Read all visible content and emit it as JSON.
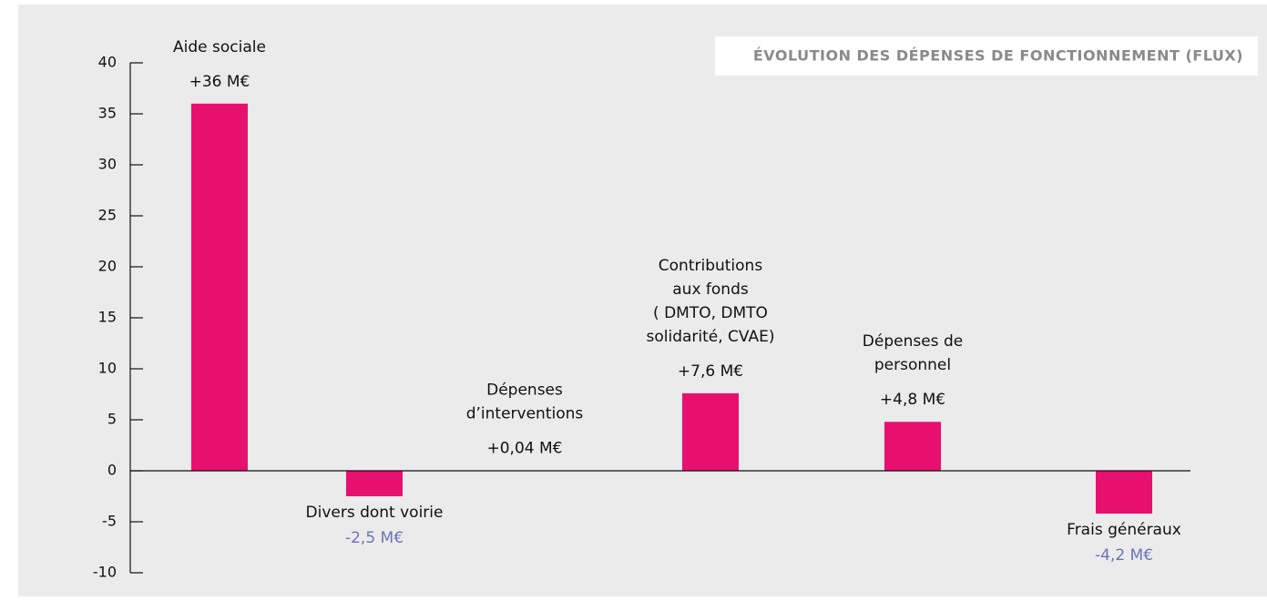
{
  "chart_data": {
    "type": "bar",
    "title": "ÉVOLUTION DES DÉPENSES DE FONCTIONNEMENT (FLUX)",
    "categories": [
      "Aide sociale",
      "Divers dont voirie",
      "Dépenses\nd’interventions",
      "Contributions\naux fonds\n( DMTO, DMTO\nsolidarité, CVAE)",
      "Dépenses de\npersonnel",
      "Frais généraux"
    ],
    "values": [
      36,
      -2.5,
      0.04,
      7.6,
      4.8,
      -4.2
    ],
    "value_labels": [
      "+36 M€",
      "-2,5 M€",
      "+0,04 M€",
      "+7,6 M€",
      "+4,8 M€",
      "-4,2 M€"
    ],
    "color": "#e8106e",
    "negative_label_color": "#6b74b8",
    "ylim": [
      -10,
      40
    ],
    "yticks": [
      -10,
      -5,
      0,
      5,
      10,
      15,
      20,
      25,
      30,
      35,
      40
    ]
  }
}
